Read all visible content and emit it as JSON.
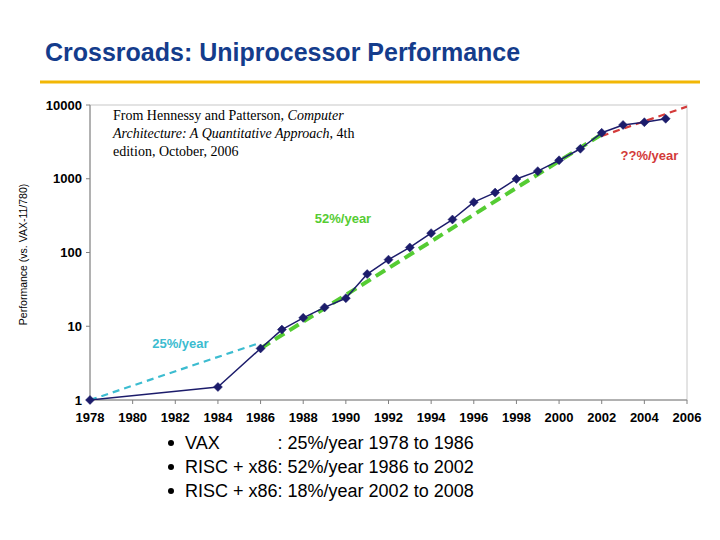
{
  "chart_data": {
    "type": "line",
    "title": "Crossroads: Uniprocessor Performance",
    "y_label": "Performance (vs. VAX-11/780)",
    "source": [
      "From Hennessy and Patterson, ",
      "Computer Architecture: A Quantitative Approach",
      ", 4th edition, October, 2006"
    ],
    "log": "y",
    "grid": false,
    "xlim": [
      1978,
      2006
    ],
    "xticks": [
      1978,
      1980,
      1982,
      1984,
      1986,
      1988,
      1990,
      1992,
      1994,
      1996,
      1998,
      2000,
      2002,
      2004,
      2006
    ],
    "ylim": [
      1,
      10000
    ],
    "yticks": [
      1,
      10,
      100,
      1000,
      10000
    ],
    "series": [
      {
        "x": [
          1978,
          1984,
          1986,
          1987,
          1988,
          1989,
          1990,
          1991,
          1992,
          1993,
          1994,
          1995,
          1996,
          1997,
          1998,
          1999,
          2000,
          2001,
          2002,
          2003,
          2004,
          2005
        ],
        "values": [
          1,
          1.5,
          5,
          9,
          13,
          18,
          24,
          51,
          80,
          117,
          183,
          280,
          481,
          649,
          993,
          1267,
          1779,
          2550,
          4195,
          5364,
          5843,
          6505
        ],
        "color": "#1c1c6b",
        "marker": "diamond",
        "line_style": "solid"
      },
      {
        "name": "25%/year",
        "x": [
          1978,
          1986
        ],
        "values": [
          1,
          6
        ],
        "color": "#3cbcd0",
        "marker": "none",
        "line_style": "dashed"
      },
      {
        "name": "52%/year",
        "x": [
          1986,
          2002
        ],
        "values": [
          5,
          4000
        ],
        "color": "#55cc33",
        "marker": "none",
        "line_style": "dashed"
      },
      {
        "name": "??%/year",
        "x": [
          2002,
          2006
        ],
        "values": [
          3800,
          9500
        ],
        "color": "#d33a3a",
        "marker": "none",
        "line_style": "dashed"
      }
    ],
    "notes": [
      {
        "label": "VAX",
        "text": ": 25%/year 1978 to 1986"
      },
      {
        "label": "RISC + x86",
        "text": ": 52%/year 1986 to 2002"
      },
      {
        "label": "RISC + x86",
        "text": ": 18%/year 2002 to 2008"
      }
    ]
  }
}
